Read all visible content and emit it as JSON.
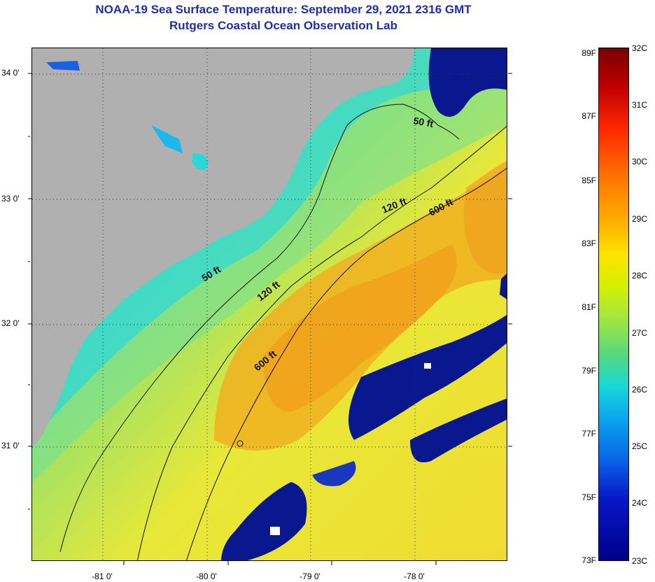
{
  "title": {
    "line1": "NOAA-19 Sea Surface Temperature:  September 29, 2021 2316 GMT",
    "line2": "Rutgers Coastal Ocean Observation Lab"
  },
  "axes": {
    "lat_labels": [
      "34 0'",
      "33 0'",
      "32 0'",
      "31 0'"
    ],
    "lon_labels": [
      "-81 0'",
      "-80 0'",
      "-79 0'",
      "-78 0'"
    ]
  },
  "contours": {
    "depth_labels": [
      "50 ft",
      "120 ft",
      "600 ft",
      "50 ft",
      "120 ft",
      "600 ft"
    ]
  },
  "colorbar": {
    "fahrenheit": [
      "89F",
      "87F",
      "85F",
      "83F",
      "81F",
      "79F",
      "77F",
      "75F",
      "73F"
    ],
    "celsius": [
      "32C",
      "31C",
      "30C",
      "29C",
      "28C",
      "27C",
      "26C",
      "25C",
      "24C",
      "23C"
    ]
  },
  "colors": {
    "land": "#b0b0b0",
    "cold": "#0a1890",
    "cool": "#2ad8d8",
    "mid": "#9ee050",
    "warm": "#f2e430",
    "hot": "#f0a818",
    "title": "#1f2fa8"
  }
}
